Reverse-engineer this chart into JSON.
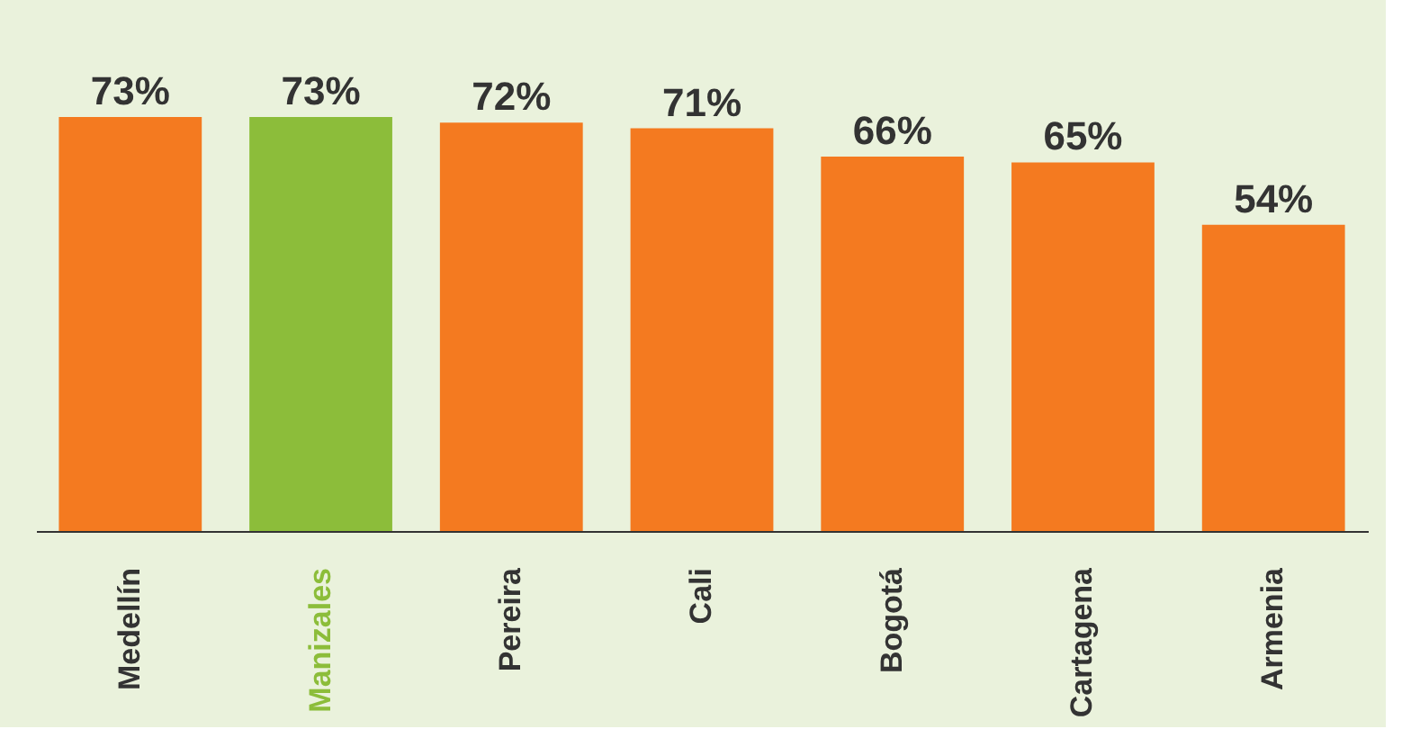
{
  "chart_data": {
    "type": "bar",
    "categories": [
      "Medellín",
      "Manizales",
      "Pereira",
      "Cali",
      "Bogotá",
      "Cartagena",
      "Armenia"
    ],
    "values": [
      73,
      73,
      72,
      71,
      66,
      65,
      54
    ],
    "value_labels": [
      "73%",
      "73%",
      "72%",
      "71%",
      "66%",
      "65%",
      "54%"
    ],
    "colors": [
      "#f47a20",
      "#8cbd3a",
      "#f47a20",
      "#f47a20",
      "#f47a20",
      "#f47a20",
      "#f47a20"
    ]
  }
}
